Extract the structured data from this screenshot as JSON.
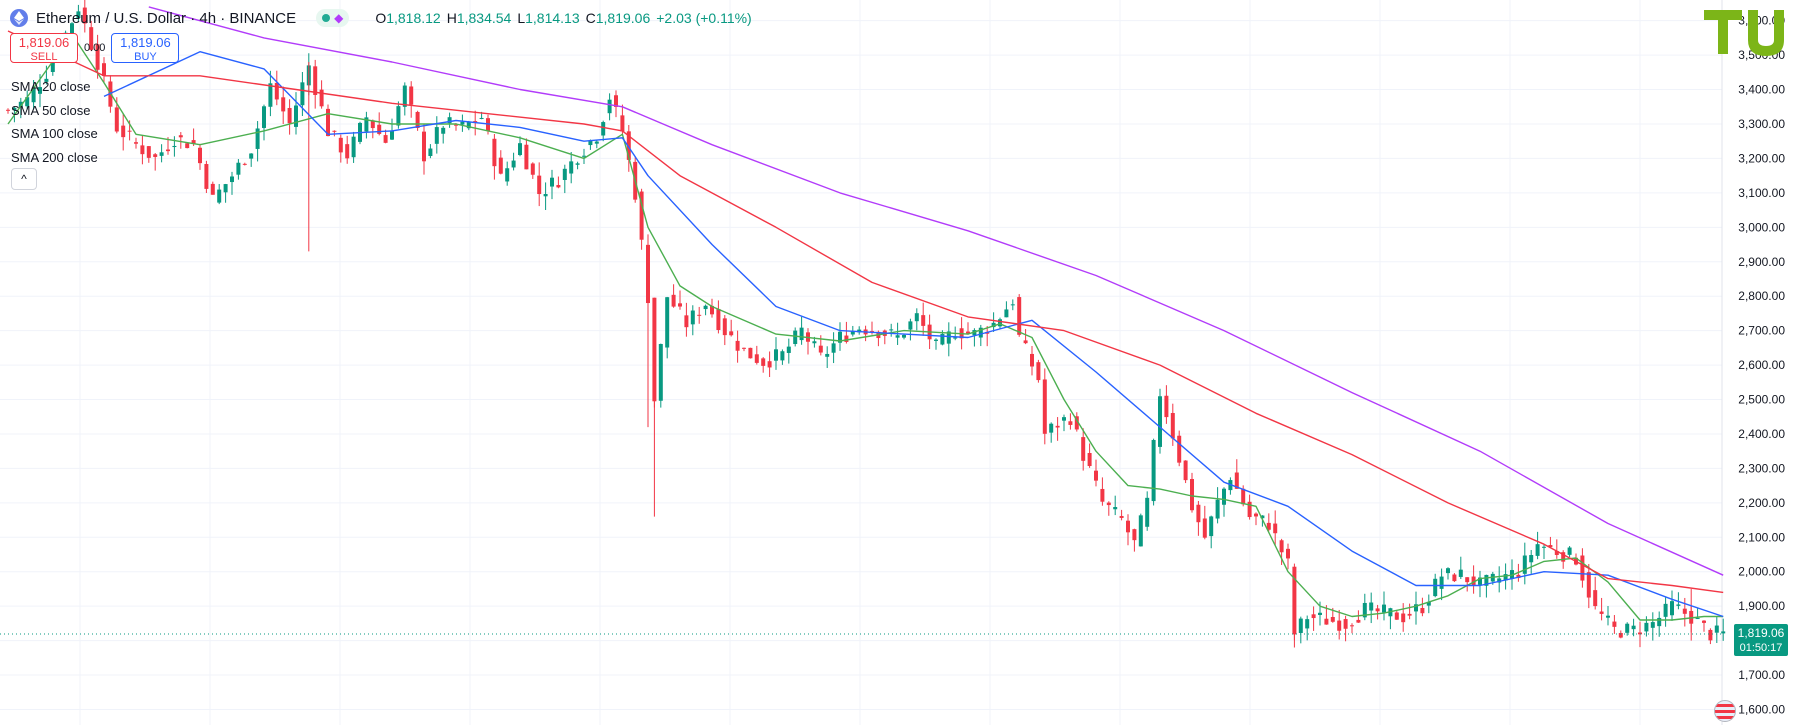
{
  "header": {
    "title": "Ethereum / U.S. Dollar · 4h · BINANCE",
    "ohlc": [
      {
        "k": "O",
        "v": "1,818.12"
      },
      {
        "k": "H",
        "v": "1,834.54"
      },
      {
        "k": "L",
        "v": "1,814.13"
      },
      {
        "k": "C",
        "v": "1,819.06"
      },
      {
        "k": "",
        "v": "+2.03 (+0.11%)"
      }
    ]
  },
  "trade": {
    "sell_price": "1,819.06",
    "sell_label": "SELL",
    "spread": "0.00",
    "buy_price": "1,819.06",
    "buy_label": "BUY"
  },
  "legend": [
    "SMA 20 close",
    "SMA 50 close",
    "SMA 100 close",
    "SMA 200 close"
  ],
  "colors": {
    "up": "#089981",
    "down": "#f23645",
    "sma20": "#4caf50",
    "sma50": "#2962ff",
    "sma100": "#f23645",
    "sma200": "#b23cfa",
    "grid": "#f0f3fa",
    "accent": "#00c853"
  },
  "chart_data": {
    "type": "line",
    "grid": true,
    "ylim": [
      1555,
      3660
    ],
    "y_ticks": [
      "3,600.00",
      "3,500.00",
      "3,400.00",
      "3,300.00",
      "3,200.00",
      "3,100.00",
      "3,000.00",
      "2,900.00",
      "2,800.00",
      "2,700.00",
      "2,600.00",
      "2,500.00",
      "2,400.00",
      "2,300.00",
      "2,200.00",
      "2,100.00",
      "2,000.00",
      "1,900.00",
      "1,800.00",
      "1,700.00",
      "1,600.00"
    ],
    "y_tick_values": [
      3600,
      3500,
      3400,
      3300,
      3200,
      3100,
      3000,
      2900,
      2800,
      2700,
      2600,
      2500,
      2400,
      2300,
      2200,
      2100,
      2000,
      1900,
      1800,
      1700,
      1600
    ],
    "price_label": {
      "price": "1,819.06",
      "value": 1819.06,
      "countdown": "01:50:17"
    },
    "price_path": [
      [
        0,
        3340
      ],
      [
        3,
        3370
      ],
      [
        6,
        3450
      ],
      [
        10,
        3600
      ],
      [
        11,
        3640
      ],
      [
        14,
        3480
      ],
      [
        17,
        3290
      ],
      [
        20,
        3240
      ],
      [
        23,
        3200
      ],
      [
        26,
        3260
      ],
      [
        29,
        3240
      ],
      [
        32,
        3080
      ],
      [
        35,
        3150
      ],
      [
        38,
        3230
      ],
      [
        41,
        3410
      ],
      [
        44,
        3300
      ],
      [
        47,
        3470
      ],
      [
        50,
        3280
      ],
      [
        53,
        3210
      ],
      [
        56,
        3320
      ],
      [
        59,
        3250
      ],
      [
        62,
        3400
      ],
      [
        65,
        3210
      ],
      [
        68,
        3300
      ],
      [
        71,
        3290
      ],
      [
        74,
        3320
      ],
      [
        77,
        3140
      ],
      [
        80,
        3240
      ],
      [
        83,
        3100
      ],
      [
        86,
        3140
      ],
      [
        89,
        3210
      ],
      [
        92,
        3270
      ],
      [
        94,
        3380
      ],
      [
        96,
        3280
      ],
      [
        98,
        3100
      ],
      [
        100,
        2800
      ],
      [
        101,
        2500
      ],
      [
        103,
        2800
      ],
      [
        106,
        2720
      ],
      [
        109,
        2780
      ],
      [
        112,
        2700
      ],
      [
        115,
        2640
      ],
      [
        118,
        2610
      ],
      [
        121,
        2630
      ],
      [
        124,
        2700
      ],
      [
        127,
        2620
      ],
      [
        130,
        2680
      ],
      [
        133,
        2710
      ],
      [
        136,
        2700
      ],
      [
        139,
        2680
      ],
      [
        142,
        2740
      ],
      [
        145,
        2650
      ],
      [
        148,
        2700
      ],
      [
        151,
        2690
      ],
      [
        154,
        2720
      ],
      [
        157,
        2790
      ],
      [
        158,
        2680
      ],
      [
        161,
        2560
      ],
      [
        162,
        2400
      ],
      [
        164,
        2430
      ],
      [
        166,
        2450
      ],
      [
        168,
        2340
      ],
      [
        171,
        2200
      ],
      [
        174,
        2150
      ],
      [
        176,
        2080
      ],
      [
        178,
        2200
      ],
      [
        180,
        2520
      ],
      [
        182,
        2400
      ],
      [
        185,
        2190
      ],
      [
        187,
        2100
      ],
      [
        189,
        2200
      ],
      [
        191,
        2280
      ],
      [
        194,
        2160
      ],
      [
        197,
        2140
      ],
      [
        200,
        2020
      ],
      [
        201,
        1820
      ],
      [
        203,
        1870
      ],
      [
        206,
        1860
      ],
      [
        209,
        1850
      ],
      [
        212,
        1890
      ],
      [
        215,
        1880
      ],
      [
        218,
        1870
      ],
      [
        221,
        1900
      ],
      [
        224,
        1990
      ],
      [
        227,
        1990
      ],
      [
        230,
        1960
      ],
      [
        233,
        1980
      ],
      [
        236,
        2000
      ],
      [
        239,
        2080
      ],
      [
        242,
        2060
      ],
      [
        245,
        2040
      ],
      [
        248,
        1890
      ],
      [
        251,
        1830
      ],
      [
        254,
        1830
      ],
      [
        257,
        1850
      ],
      [
        260,
        1900
      ],
      [
        263,
        1870
      ],
      [
        266,
        1820
      ],
      [
        268,
        1819
      ]
    ],
    "wicks": [
      {
        "x": 47,
        "low": 2930,
        "high": 3480
      },
      {
        "x": 101,
        "low": 2160,
        "high": 2700
      },
      {
        "x": 100,
        "low": 2420,
        "high": 2900
      },
      {
        "x": 201,
        "low": 1780,
        "high": 1920
      },
      {
        "x": 263,
        "low": 1800,
        "high": 1950
      }
    ],
    "series": [
      {
        "key": "sma20",
        "points": [
          [
            0,
            3300
          ],
          [
            10,
            3560
          ],
          [
            15,
            3420
          ],
          [
            20,
            3270
          ],
          [
            30,
            3240
          ],
          [
            40,
            3280
          ],
          [
            50,
            3330
          ],
          [
            60,
            3300
          ],
          [
            70,
            3300
          ],
          [
            80,
            3260
          ],
          [
            90,
            3200
          ],
          [
            96,
            3270
          ],
          [
            100,
            3000
          ],
          [
            105,
            2830
          ],
          [
            110,
            2770
          ],
          [
            120,
            2690
          ],
          [
            130,
            2670
          ],
          [
            140,
            2700
          ],
          [
            150,
            2690
          ],
          [
            155,
            2720
          ],
          [
            160,
            2680
          ],
          [
            165,
            2500
          ],
          [
            170,
            2350
          ],
          [
            175,
            2250
          ],
          [
            180,
            2240
          ],
          [
            185,
            2220
          ],
          [
            190,
            2210
          ],
          [
            195,
            2190
          ],
          [
            200,
            2000
          ],
          [
            205,
            1900
          ],
          [
            210,
            1870
          ],
          [
            215,
            1880
          ],
          [
            220,
            1900
          ],
          [
            225,
            1930
          ],
          [
            230,
            1980
          ],
          [
            235,
            1990
          ],
          [
            240,
            2030
          ],
          [
            245,
            2040
          ],
          [
            250,
            1970
          ],
          [
            255,
            1860
          ],
          [
            260,
            1860
          ],
          [
            265,
            1870
          ],
          [
            268,
            1870
          ]
        ]
      },
      {
        "key": "sma50",
        "points": [
          [
            15,
            3380
          ],
          [
            30,
            3510
          ],
          [
            40,
            3460
          ],
          [
            50,
            3270
          ],
          [
            60,
            3280
          ],
          [
            70,
            3310
          ],
          [
            80,
            3290
          ],
          [
            90,
            3250
          ],
          [
            96,
            3260
          ],
          [
            100,
            3150
          ],
          [
            110,
            2950
          ],
          [
            120,
            2770
          ],
          [
            130,
            2700
          ],
          [
            140,
            2690
          ],
          [
            150,
            2680
          ],
          [
            160,
            2730
          ],
          [
            170,
            2580
          ],
          [
            180,
            2420
          ],
          [
            190,
            2260
          ],
          [
            200,
            2190
          ],
          [
            210,
            2060
          ],
          [
            220,
            1960
          ],
          [
            230,
            1960
          ],
          [
            240,
            2000
          ],
          [
            250,
            1990
          ],
          [
            260,
            1920
          ],
          [
            268,
            1870
          ]
        ]
      },
      {
        "key": "sma100",
        "points": [
          [
            0,
            3570
          ],
          [
            15,
            3440
          ],
          [
            30,
            3440
          ],
          [
            45,
            3400
          ],
          [
            60,
            3360
          ],
          [
            75,
            3330
          ],
          [
            90,
            3300
          ],
          [
            96,
            3280
          ],
          [
            105,
            3150
          ],
          [
            120,
            3000
          ],
          [
            135,
            2840
          ],
          [
            150,
            2740
          ],
          [
            165,
            2700
          ],
          [
            180,
            2600
          ],
          [
            195,
            2460
          ],
          [
            210,
            2340
          ],
          [
            225,
            2200
          ],
          [
            240,
            2080
          ],
          [
            250,
            1980
          ],
          [
            260,
            1960
          ],
          [
            268,
            1940
          ]
        ]
      },
      {
        "key": "sma200",
        "points": [
          [
            22,
            3640
          ],
          [
            40,
            3550
          ],
          [
            60,
            3480
          ],
          [
            80,
            3400
          ],
          [
            96,
            3350
          ],
          [
            110,
            3240
          ],
          [
            130,
            3100
          ],
          [
            150,
            2990
          ],
          [
            170,
            2860
          ],
          [
            190,
            2700
          ],
          [
            210,
            2520
          ],
          [
            230,
            2350
          ],
          [
            250,
            2140
          ],
          [
            268,
            1990
          ]
        ]
      }
    ]
  }
}
